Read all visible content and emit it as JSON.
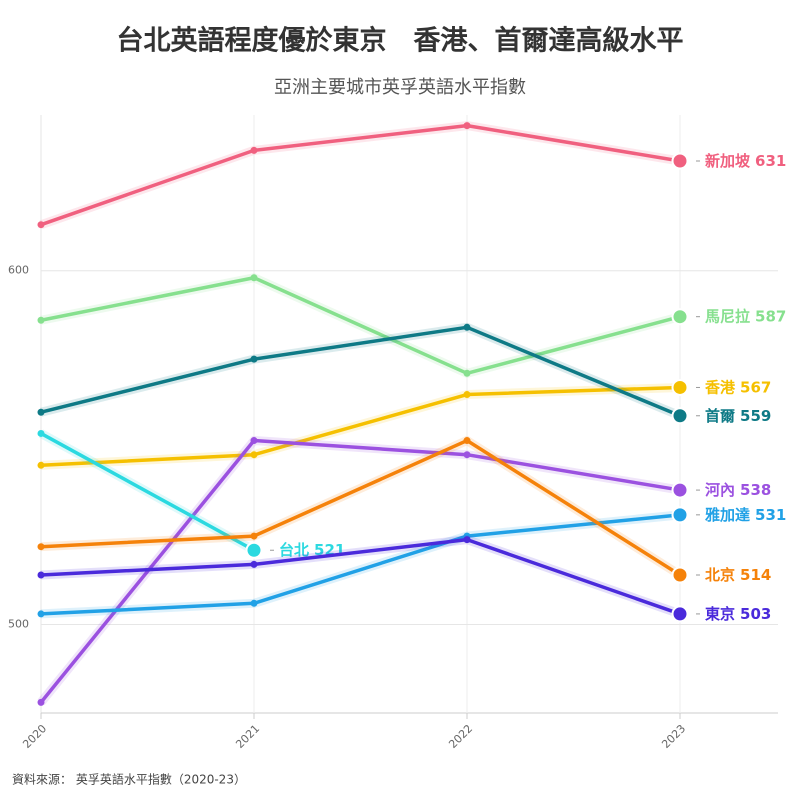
{
  "chart_data": {
    "type": "line",
    "title": "台北英語程度優於東京　香港、首爾達高級水平",
    "subtitle": "亞洲主要城市英孚英語水平指數",
    "source": "資料來源： 英孚英語水平指數（2020-23）",
    "categories": [
      "2020",
      "2021",
      "2022",
      "2023"
    ],
    "ylim": [
      475,
      644
    ],
    "yticks": [
      500,
      600
    ],
    "grid": true,
    "series": [
      {
        "name": "新加坡",
        "color": "#f0607f",
        "values": [
          613,
          634,
          641,
          631
        ]
      },
      {
        "name": "馬尼拉",
        "color": "#86e08e",
        "values": [
          586,
          598,
          571,
          587
        ]
      },
      {
        "name": "香港",
        "color": "#f5c000",
        "values": [
          545,
          548,
          565,
          567
        ]
      },
      {
        "name": "首爾",
        "color": "#0e7a86",
        "values": [
          560,
          575,
          584,
          559
        ]
      },
      {
        "name": "河內",
        "color": "#9b51e0",
        "values": [
          478,
          552,
          548,
          538
        ]
      },
      {
        "name": "雅加達",
        "color": "#21a1e6",
        "values": [
          503,
          506,
          525,
          531
        ]
      },
      {
        "name": "台北",
        "color": "#2bd9e0",
        "values": [
          554,
          521,
          null,
          null
        ]
      },
      {
        "name": "北京",
        "color": "#f5820a",
        "values": [
          522,
          525,
          552,
          514
        ]
      },
      {
        "name": "東京",
        "color": "#4a2adb",
        "values": [
          514,
          517,
          524,
          503
        ]
      }
    ]
  }
}
